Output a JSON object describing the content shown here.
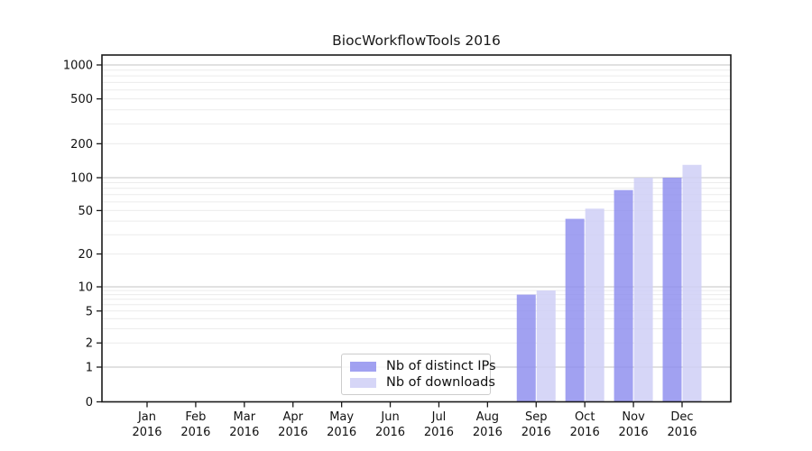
{
  "chart_data": {
    "type": "bar",
    "title": "BiocWorkflowTools 2016",
    "categories": [
      [
        "Jan",
        "2016"
      ],
      [
        "Feb",
        "2016"
      ],
      [
        "Mar",
        "2016"
      ],
      [
        "Apr",
        "2016"
      ],
      [
        "May",
        "2016"
      ],
      [
        "Jun",
        "2016"
      ],
      [
        "Jul",
        "2016"
      ],
      [
        "Aug",
        "2016"
      ],
      [
        "Sep",
        "2016"
      ],
      [
        "Oct",
        "2016"
      ],
      [
        "Nov",
        "2016"
      ],
      [
        "Dec",
        "2016"
      ]
    ],
    "series": [
      {
        "name": "Nb of distinct IPs",
        "color": "#9090ee",
        "values": [
          0,
          0,
          0,
          0,
          0,
          0,
          0,
          0,
          8,
          42,
          77,
          100
        ]
      },
      {
        "name": "Nb of downloads",
        "color": "#cfcff6",
        "values": [
          0,
          0,
          0,
          0,
          0,
          0,
          0,
          0,
          9,
          52,
          100,
          130
        ]
      }
    ],
    "yscale": "symlog",
    "yticks": [
      0,
      1,
      2,
      5,
      10,
      20,
      50,
      100,
      200,
      500,
      1000
    ],
    "ylim": [
      0,
      1250
    ],
    "xlabel": "",
    "ylabel": "",
    "grid": true,
    "legend_position": "lower center"
  },
  "colors": {
    "major_grid": "#c3c3c3",
    "minor_grid": "#ececec",
    "spine": "#1a1a1a",
    "tick_text": "#111111"
  }
}
